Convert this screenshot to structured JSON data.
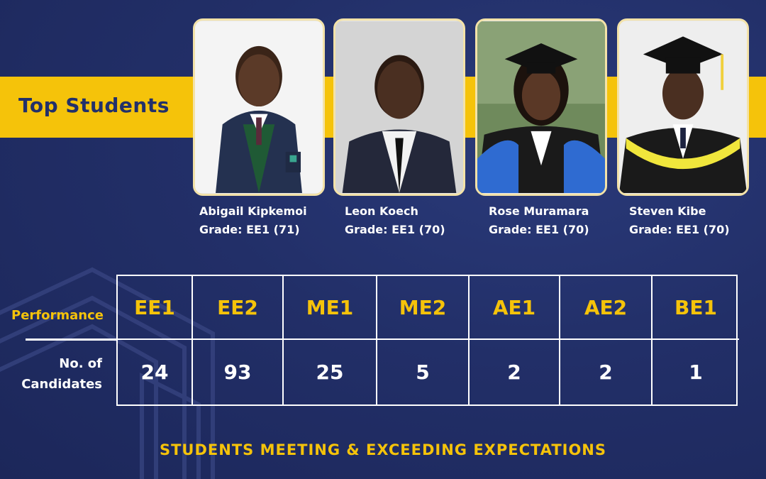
{
  "banner": {
    "title": "Top Students"
  },
  "students": [
    {
      "name": "Abigail Kipkemoi",
      "grade": "Grade: EE1 (71)"
    },
    {
      "name": "Leon Koech",
      "grade": "Grade: EE1 (70)"
    },
    {
      "name": "Rose Muramara",
      "grade": "Grade: EE1 (70)"
    },
    {
      "name": "Steven Kibe",
      "grade": "Grade: EE1 (70)"
    }
  ],
  "table": {
    "row_labels": {
      "performance": "Performance",
      "candidates": "No. of Candidates"
    },
    "grades": [
      "EE1",
      "EE2",
      "ME1",
      "ME2",
      "AE1",
      "AE2",
      "BE1"
    ],
    "counts": [
      "24",
      "93",
      "25",
      "5",
      "2",
      "2",
      "1"
    ]
  },
  "footer": {
    "text": "STUDENTS MEETING & EXCEEDING EXPECTATIONS"
  },
  "colors": {
    "background": "#22306a",
    "accent": "#f5c30a",
    "card_border": "#f3e2a8"
  }
}
